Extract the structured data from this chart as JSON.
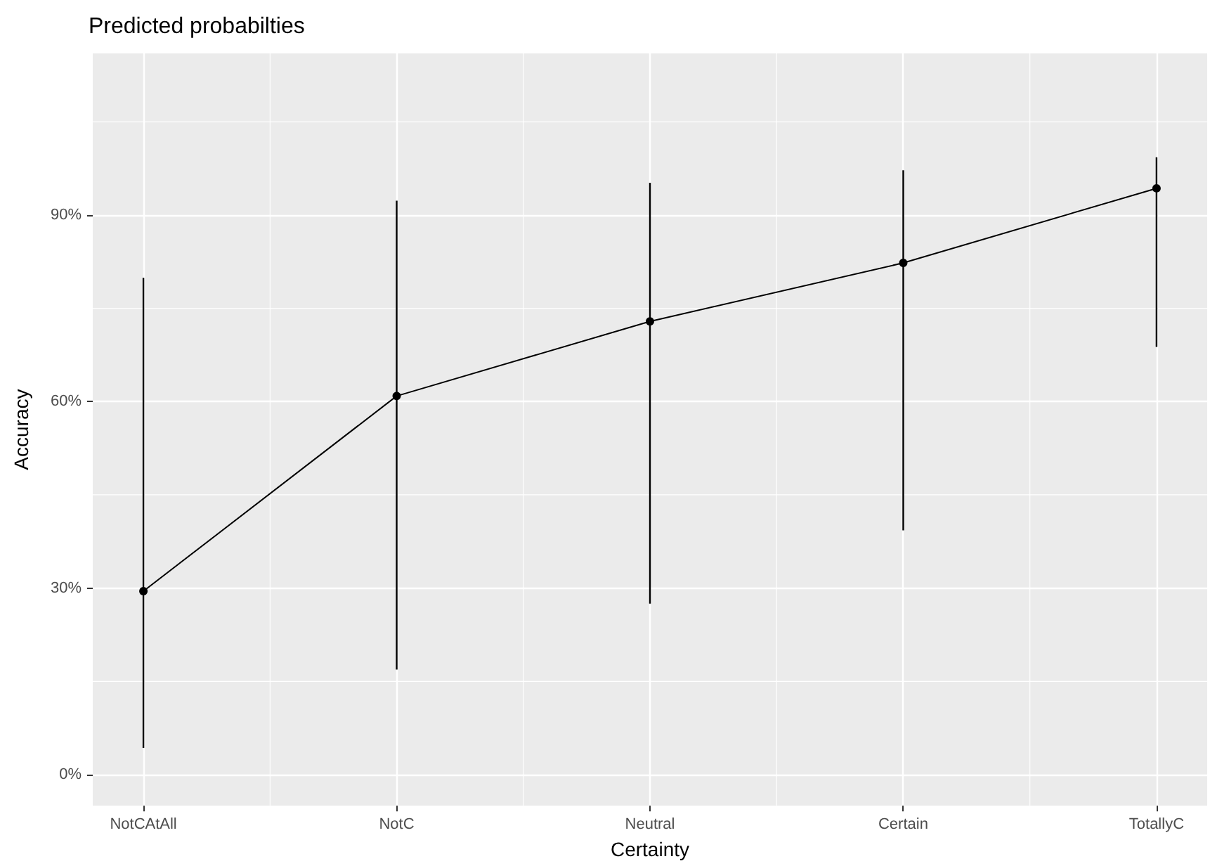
{
  "chart_data": {
    "type": "line",
    "title": "Predicted probabilties",
    "xlabel": "Certainty",
    "ylabel": "Accuracy",
    "categories": [
      "NotCAtAll",
      "NotC",
      "Neutral",
      "Certain",
      "TotallyC"
    ],
    "series": [
      {
        "color": "#000000",
        "values": [
          29.5,
          60.9,
          72.9,
          82.3,
          94.3
        ],
        "errors": [
          [
            4.3,
            79.9
          ],
          [
            16.9,
            92.3
          ],
          [
            27.5,
            95.2
          ],
          [
            39.3,
            97.2
          ],
          [
            68.8,
            99.3
          ]
        ]
      }
    ],
    "ylim": [
      -5,
      116
    ],
    "yticks": [
      {
        "value": 0,
        "label": "0%"
      },
      {
        "value": 30,
        "label": "30%"
      },
      {
        "value": 60,
        "label": "60%"
      },
      {
        "value": 90,
        "label": "90%"
      }
    ],
    "grid": true,
    "marker": "circle",
    "line_style": "solid"
  }
}
